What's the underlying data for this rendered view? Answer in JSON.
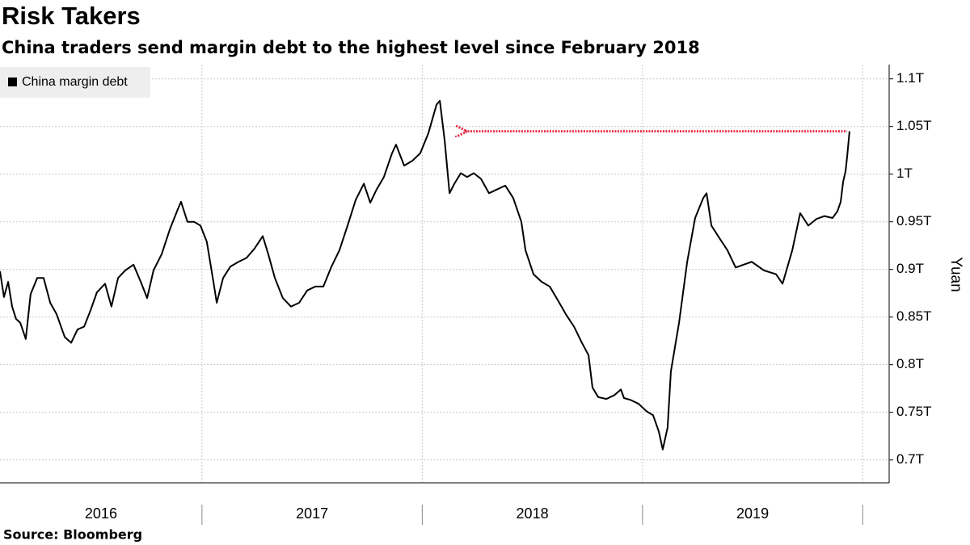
{
  "chart_data": {
    "type": "line",
    "title": "Risk Takers",
    "subtitle": "China traders send margin debt to the highest level since February 2018",
    "y_label": "Yuan",
    "source": "Source: Bloomberg",
    "legend": "top-left",
    "grid": true,
    "x": [
      2016.083,
      2016.101,
      2016.12,
      2016.138,
      2016.156,
      2016.175,
      2016.2,
      2016.222,
      2016.252,
      2016.281,
      2016.311,
      2016.34,
      2016.377,
      2016.406,
      2016.435,
      2016.465,
      2016.494,
      2016.523,
      2016.56,
      2016.589,
      2016.619,
      2016.652,
      2016.689,
      2016.722,
      2016.751,
      2016.78,
      2016.817,
      2016.854,
      2016.89,
      2016.905,
      2016.934,
      2016.964,
      2016.993,
      2017.022,
      2017.052,
      2017.067,
      2017.096,
      2017.129,
      2017.166,
      2017.202,
      2017.239,
      2017.276,
      2017.301,
      2017.331,
      2017.367,
      2017.404,
      2017.441,
      2017.478,
      2017.514,
      2017.551,
      2017.588,
      2017.624,
      2017.661,
      2017.698,
      2017.735,
      2017.764,
      2017.793,
      2017.826,
      2017.863,
      2017.881,
      2017.918,
      2017.955,
      2017.991,
      2018.028,
      2018.065,
      2018.08,
      2018.102,
      2018.124,
      2018.146,
      2018.175,
      2018.204,
      2018.234,
      2018.267,
      2018.303,
      2018.34,
      2018.377,
      2018.413,
      2018.45,
      2018.469,
      2018.505,
      2018.542,
      2018.579,
      2018.615,
      2018.652,
      2018.689,
      2018.725,
      2018.755,
      2018.773,
      2018.799,
      2018.836,
      2018.872,
      2018.902,
      2018.916,
      2018.946,
      2018.982,
      2019.019,
      2019.048,
      2019.074,
      2019.092,
      2019.114,
      2019.129,
      2019.166,
      2019.203,
      2019.239,
      2019.276,
      2019.291,
      2019.313,
      2019.349,
      2019.386,
      2019.423,
      2019.459,
      2019.496,
      2019.551,
      2019.606,
      2019.636,
      2019.68,
      2019.716,
      2019.753,
      2019.79,
      2019.826,
      2019.863,
      2019.885,
      2019.9,
      2019.911,
      2019.922,
      2019.929,
      2019.94
    ],
    "series": [
      {
        "name": "China margin debt",
        "color": "#000000",
        "values": [
          0.898,
          0.871,
          0.887,
          0.861,
          0.848,
          0.844,
          0.827,
          0.874,
          0.891,
          0.891,
          0.865,
          0.853,
          0.829,
          0.823,
          0.837,
          0.84,
          0.857,
          0.876,
          0.885,
          0.861,
          0.891,
          0.899,
          0.905,
          0.887,
          0.87,
          0.899,
          0.916,
          0.942,
          0.963,
          0.971,
          0.95,
          0.95,
          0.946,
          0.929,
          0.887,
          0.865,
          0.891,
          0.903,
          0.908,
          0.912,
          0.922,
          0.935,
          0.916,
          0.891,
          0.87,
          0.861,
          0.865,
          0.878,
          0.882,
          0.882,
          0.903,
          0.92,
          0.946,
          0.973,
          0.99,
          0.97,
          0.984,
          0.997,
          1.022,
          1.031,
          1.009,
          1.014,
          1.022,
          1.043,
          1.073,
          1.077,
          1.035,
          0.98,
          0.99,
          1.001,
          0.997,
          1.001,
          0.995,
          0.98,
          0.984,
          0.988,
          0.975,
          0.95,
          0.92,
          0.895,
          0.887,
          0.882,
          0.868,
          0.853,
          0.84,
          0.823,
          0.81,
          0.776,
          0.766,
          0.764,
          0.768,
          0.774,
          0.765,
          0.763,
          0.759,
          0.751,
          0.747,
          0.73,
          0.711,
          0.734,
          0.793,
          0.844,
          0.908,
          0.954,
          0.975,
          0.98,
          0.946,
          0.933,
          0.92,
          0.902,
          0.905,
          0.908,
          0.899,
          0.895,
          0.885,
          0.92,
          0.959,
          0.946,
          0.953,
          0.956,
          0.954,
          0.961,
          0.971,
          0.992,
          1.003,
          1.018,
          1.045
        ]
      }
    ],
    "reference_line": {
      "value": 1.045,
      "x": [
        2018.193,
        2019.929
      ],
      "color": "#e8304a"
    },
    "xlim": [
      2016.083,
      2020.12
    ],
    "xticks": [
      2017,
      2018,
      2019,
      2020
    ],
    "x_labels": [
      "2016",
      "2017",
      "2018",
      "2019"
    ],
    "ylim": [
      0.676,
      1.115
    ],
    "yticks": [
      {
        "value": 0.7,
        "label": "0.7T"
      },
      {
        "value": 0.75,
        "label": "0.75T"
      },
      {
        "value": 0.8,
        "label": "0.8T"
      },
      {
        "value": 0.85,
        "label": "0.85T"
      },
      {
        "value": 0.9,
        "label": "0.9T"
      },
      {
        "value": 0.95,
        "label": "0.95T"
      },
      {
        "value": 1,
        "label": "1T"
      },
      {
        "value": 1.05,
        "label": "1.05T"
      },
      {
        "value": 1.1,
        "label": "1.1T"
      }
    ]
  }
}
